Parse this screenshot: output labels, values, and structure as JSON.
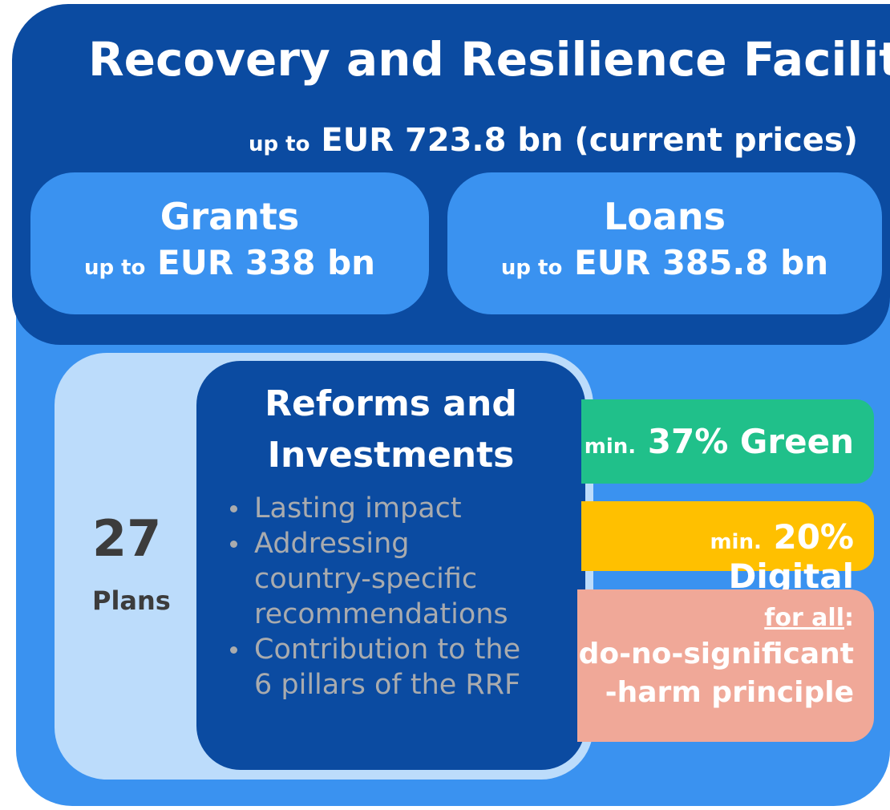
{
  "title": "Recovery and Resilience Facility",
  "total": {
    "prefix": "up to",
    "amount": "EUR 723.8 bn (current prices)"
  },
  "grants": {
    "label": "Grants",
    "prefix": "up to",
    "amount": "EUR 338 bn"
  },
  "loans": {
    "label": "Loans",
    "prefix": "up to",
    "amount": "EUR 385.8 bn"
  },
  "plans": {
    "number": "27",
    "label": "Plans"
  },
  "reforms": {
    "title_lines": [
      "Reforms and",
      "Investments"
    ],
    "bullet_lines": [
      [
        "Lasting impact"
      ],
      [
        "Addressing",
        "country-specific",
        "recommendations"
      ],
      [
        "Contribution to the",
        "6 pillars of the RRF"
      ]
    ]
  },
  "green": {
    "prefix": "min.",
    "text": "37% Green"
  },
  "digital": {
    "prefix": "min.",
    "text": "20% Digital"
  },
  "dnsh": {
    "lead": "for all",
    "colon": ":",
    "lines": [
      "do-no-significant",
      "-harm principle"
    ]
  }
}
